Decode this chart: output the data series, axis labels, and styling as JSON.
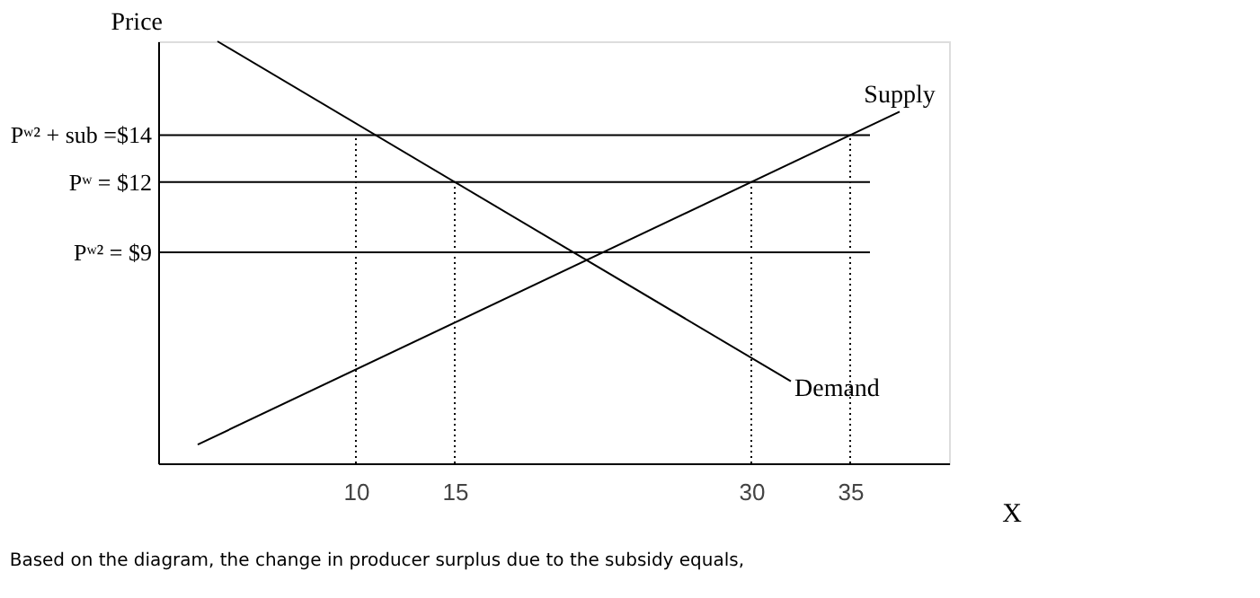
{
  "chart_data": {
    "type": "line",
    "xlabel": "X",
    "ylabel": "Price",
    "series": [
      {
        "name": "Supply",
        "color": "#000000",
        "x": [
          2,
          37.5
        ],
        "values": [
          0.8,
          15
        ]
      },
      {
        "name": "Demand",
        "color": "#000000",
        "x": [
          3,
          32
        ],
        "values": [
          18,
          3.5
        ]
      }
    ],
    "xlim": [
      0,
      40
    ],
    "ylim": [
      0,
      18
    ],
    "xticks": [
      10,
      15,
      30,
      35
    ],
    "yticks": [
      {
        "value": 14,
        "label": "Pʷ² + sub =$14"
      },
      {
        "value": 12,
        "label": "Pʷ = $12"
      },
      {
        "value": 9,
        "label": "Pʷ² =  $9"
      }
    ],
    "ref_lines": [
      {
        "axis": "y",
        "value": 14,
        "color": "#000000"
      },
      {
        "axis": "y",
        "value": 12,
        "color": "#000000"
      },
      {
        "axis": "y",
        "value": 9,
        "color": "#000000"
      },
      {
        "axis": "x",
        "value": 10,
        "color": "#000000",
        "line_style": "dotted"
      },
      {
        "axis": "x",
        "value": 15,
        "color": "#000000",
        "line_style": "dotted"
      },
      {
        "axis": "x",
        "value": 30,
        "color": "#000000",
        "line_style": "dotted"
      },
      {
        "axis": "x",
        "value": 35,
        "color": "#000000",
        "line_style": "dotted"
      }
    ],
    "annotations": [
      "Based on the diagram, the change in producer surplus due to the subsidy equals,"
    ],
    "grid": false,
    "marker": "none",
    "line_style": "solid"
  }
}
